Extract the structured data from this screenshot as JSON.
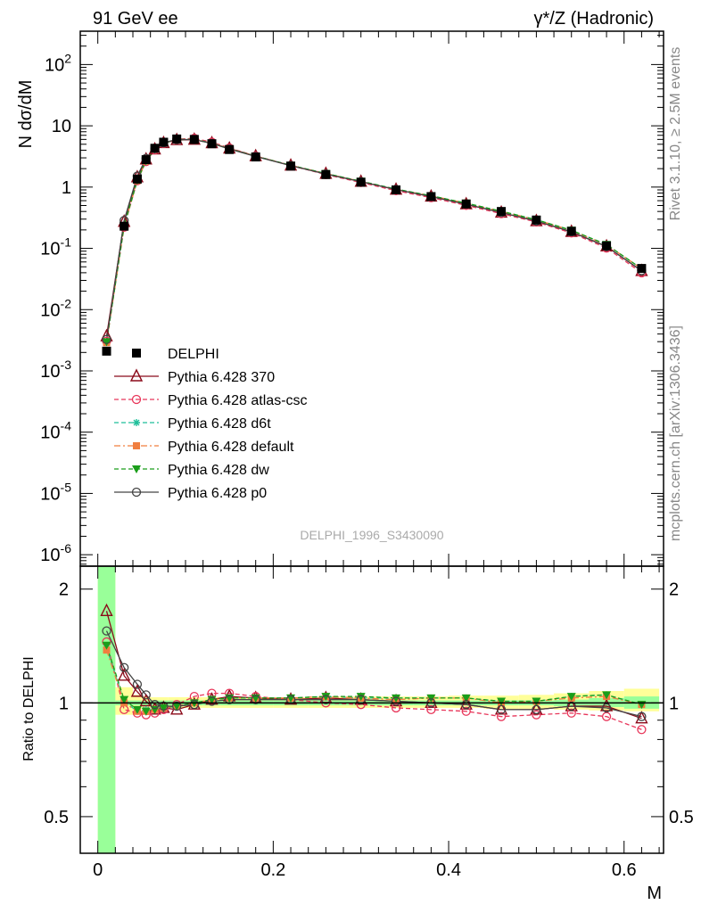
{
  "header": {
    "left_title": "91 GeV ee",
    "right_title": "γ*/Z (Hadronic)"
  },
  "side_labels": {
    "rivet": "Rivet 3.1.10, ≥ 2.5M events",
    "mcplots": "mcplots.cern.ch [arXiv:1306.3436]"
  },
  "watermark": "DELPHI_1996_S3430090",
  "chart_data": {
    "type": "line",
    "title": "",
    "xlabel": "M",
    "ylabel": "N dσ/dM",
    "ratio_ylabel": "Ratio to DELPHI",
    "xlim": [
      -0.02,
      0.645
    ],
    "ylim": [
      6.5e-07,
      350
    ],
    "yscale": "log",
    "ratio_ylim": [
      0.4,
      2.3
    ],
    "ratio_yscale": "log",
    "grid": false,
    "legend_position": "lower-left",
    "x_ticks": [
      "0",
      "0.2",
      "0.4",
      "0.6"
    ],
    "y_ticks": [
      "10^-6",
      "10^-5",
      "10^-4",
      "10^-3",
      "10^-2",
      "10^-1",
      "1",
      "10",
      "10^2"
    ],
    "ratio_y_ticks": [
      "0.5",
      "1",
      "2"
    ],
    "x": [
      0.01,
      0.03,
      0.045,
      0.055,
      0.065,
      0.075,
      0.09,
      0.11,
      0.13,
      0.15,
      0.18,
      0.22,
      0.26,
      0.3,
      0.34,
      0.38,
      0.42,
      0.46,
      0.5,
      0.54,
      0.58,
      0.62
    ],
    "data": {
      "name": "DELPHI",
      "values": [
        0.0021,
        0.23,
        1.35,
        2.8,
        4.3,
        5.4,
        6.1,
        6.0,
        5.1,
        4.1,
        3.1,
        2.2,
        1.6,
        1.2,
        0.9,
        0.7,
        0.53,
        0.4,
        0.29,
        0.19,
        0.11,
        0.047
      ]
    },
    "series": [
      {
        "name": "Pythia 6.428 370",
        "color": "#8b0a1a",
        "marker": "triangle-up-open",
        "dash": "solid",
        "ratio": [
          1.75,
          1.18,
          1.07,
          1.01,
          0.96,
          0.97,
          0.96,
          0.99,
          1.02,
          1.04,
          1.03,
          1.02,
          1.03,
          1.02,
          1.01,
          1.0,
          0.99,
          0.96,
          0.96,
          0.98,
          0.98,
          0.91
        ]
      },
      {
        "name": "Pythia 6.428 atlas-csc",
        "color": "#e8365a",
        "marker": "circle-open",
        "dash": "dashed",
        "ratio": [
          1.45,
          0.96,
          0.94,
          0.93,
          0.94,
          0.96,
          0.99,
          1.04,
          1.06,
          1.06,
          1.04,
          1.02,
          1.0,
          0.99,
          0.97,
          0.96,
          0.95,
          0.92,
          0.93,
          0.94,
          0.92,
          0.85
        ]
      },
      {
        "name": "Pythia 6.428 d6t",
        "color": "#1fbf9a",
        "marker": "star",
        "dash": "dashed",
        "ratio": [
          1.4,
          1.01,
          0.95,
          0.96,
          0.96,
          0.97,
          0.98,
          1.0,
          1.02,
          1.03,
          1.03,
          1.03,
          1.04,
          1.03,
          1.03,
          1.03,
          1.03,
          1.01,
          1.01,
          1.04,
          1.05,
          0.99
        ]
      },
      {
        "name": "Pythia 6.428 default",
        "color": "#f07e3f",
        "marker": "square-filled",
        "dash": "dashdot",
        "ratio": [
          1.38,
          1.0,
          0.95,
          0.95,
          0.96,
          0.97,
          0.98,
          1.0,
          1.02,
          1.03,
          1.03,
          1.03,
          1.04,
          1.03,
          1.02,
          1.03,
          1.03,
          1.0,
          1.01,
          1.03,
          1.04,
          0.99
        ]
      },
      {
        "name": "Pythia 6.428 dw",
        "color": "#1a9e1a",
        "marker": "triangle-down-filled",
        "dash": "dashed",
        "ratio": [
          1.42,
          1.02,
          0.96,
          0.95,
          0.96,
          0.97,
          0.98,
          1.0,
          1.02,
          1.03,
          1.03,
          1.03,
          1.04,
          1.04,
          1.03,
          1.03,
          1.03,
          1.01,
          1.01,
          1.04,
          1.05,
          0.99
        ]
      },
      {
        "name": "Pythia 6.428 p0",
        "color": "#444444",
        "marker": "circle-open",
        "dash": "solid",
        "ratio": [
          1.55,
          1.24,
          1.12,
          1.05,
          0.99,
          0.98,
          0.98,
          0.99,
          1.01,
          1.02,
          1.02,
          1.02,
          1.02,
          1.02,
          1.01,
          1.0,
          0.99,
          0.96,
          0.96,
          0.98,
          0.97,
          0.92
        ]
      }
    ],
    "ratio_bands": {
      "stat_color": "#99ff99",
      "syst_color": "#ffff99",
      "x_edges": [
        0.0,
        0.02,
        0.04,
        0.05,
        0.06,
        0.07,
        0.08,
        0.1,
        0.12,
        0.14,
        0.16,
        0.2,
        0.24,
        0.28,
        0.32,
        0.36,
        0.4,
        0.44,
        0.48,
        0.52,
        0.56,
        0.6,
        0.64
      ],
      "stat": [
        [
          0.3,
          3.5
        ],
        [
          0.985,
          1.015
        ],
        [
          0.985,
          1.015
        ],
        [
          0.985,
          1.015
        ],
        [
          0.985,
          1.015
        ],
        [
          0.985,
          1.015
        ],
        [
          0.985,
          1.015
        ],
        [
          0.985,
          1.015
        ],
        [
          0.985,
          1.015
        ],
        [
          0.985,
          1.015
        ],
        [
          0.985,
          1.015
        ],
        [
          0.985,
          1.015
        ],
        [
          0.985,
          1.015
        ],
        [
          0.985,
          1.015
        ],
        [
          0.985,
          1.015
        ],
        [
          0.985,
          1.015
        ],
        [
          0.985,
          1.015
        ],
        [
          0.985,
          1.015
        ],
        [
          0.985,
          1.015
        ],
        [
          0.98,
          1.02
        ],
        [
          0.975,
          1.03
        ],
        [
          0.965,
          1.04
        ]
      ],
      "syst": [
        [
          0.3,
          3.5
        ],
        [
          0.93,
          1.1
        ],
        [
          0.96,
          1.05
        ],
        [
          0.965,
          1.04
        ],
        [
          0.97,
          1.035
        ],
        [
          0.97,
          1.035
        ],
        [
          0.97,
          1.035
        ],
        [
          0.97,
          1.035
        ],
        [
          0.97,
          1.035
        ],
        [
          0.97,
          1.035
        ],
        [
          0.97,
          1.035
        ],
        [
          0.97,
          1.035
        ],
        [
          0.97,
          1.04
        ],
        [
          0.97,
          1.04
        ],
        [
          0.97,
          1.04
        ],
        [
          0.97,
          1.04
        ],
        [
          0.97,
          1.045
        ],
        [
          0.965,
          1.045
        ],
        [
          0.965,
          1.05
        ],
        [
          0.96,
          1.06
        ],
        [
          0.955,
          1.075
        ],
        [
          0.95,
          1.09
        ]
      ]
    }
  }
}
